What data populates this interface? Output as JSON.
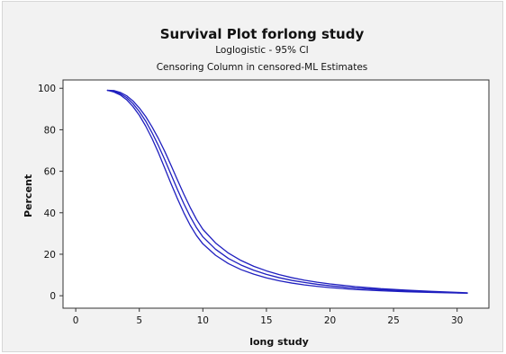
{
  "chart_data": {
    "type": "line",
    "title": "Survival Plot forlong study",
    "subtitle_1": "Loglogistic - 95% CI",
    "subtitle_2": "Censoring Column in censored-ML Estimates",
    "xlabel": "long study",
    "ylabel": "Percent",
    "xlim": [
      -1,
      32.5
    ],
    "ylim": [
      -6,
      104
    ],
    "xticks": [
      0,
      5,
      10,
      15,
      20,
      25,
      30
    ],
    "yticks": [
      0,
      20,
      40,
      60,
      80,
      100
    ],
    "grid": false,
    "legend": "none",
    "line_color": "#1f1fbf",
    "series": [
      {
        "x": [
          2.5,
          3.0,
          3.5,
          4.0,
          4.5,
          5.0,
          5.5,
          6.0,
          6.5,
          7.0,
          7.5,
          8.0,
          8.5,
          9.0,
          9.5,
          10.0,
          11.0,
          12.0,
          13.0,
          14.0,
          15.0,
          16.0,
          17.0,
          18.0,
          19.0,
          20.0,
          22.0,
          24.0,
          26.0,
          28.0,
          30.0,
          30.8
        ],
        "y": [
          99.0,
          98.2,
          96.8,
          94.5,
          91.2,
          87.0,
          81.8,
          75.8,
          69.0,
          61.5,
          54.0,
          46.8,
          40.0,
          34.0,
          29.0,
          25.0,
          19.5,
          15.5,
          12.6,
          10.4,
          8.6,
          7.2,
          6.1,
          5.2,
          4.5,
          3.9,
          3.0,
          2.4,
          1.9,
          1.6,
          1.3,
          1.2
        ]
      },
      {
        "x": [
          2.5,
          3.0,
          3.5,
          4.0,
          4.5,
          5.0,
          5.5,
          6.0,
          6.5,
          7.0,
          7.5,
          8.0,
          8.5,
          9.0,
          9.5,
          10.0,
          11.0,
          12.0,
          13.0,
          14.0,
          15.0,
          16.0,
          17.0,
          18.0,
          19.0,
          20.0,
          22.0,
          24.0,
          26.0,
          28.0,
          30.0,
          30.8
        ],
        "y": [
          99.0,
          98.6,
          97.4,
          95.5,
          92.6,
          88.8,
          84.2,
          78.6,
          72.4,
          65.6,
          58.4,
          51.2,
          44.4,
          38.2,
          32.8,
          28.4,
          22.4,
          18.0,
          14.8,
          12.3,
          10.3,
          8.7,
          7.4,
          6.4,
          5.5,
          4.8,
          3.7,
          2.9,
          2.3,
          1.8,
          1.4,
          1.3
        ]
      },
      {
        "x": [
          2.5,
          3.0,
          3.5,
          4.0,
          4.5,
          5.0,
          5.5,
          6.0,
          6.5,
          7.0,
          7.5,
          8.0,
          8.5,
          9.0,
          9.5,
          10.0,
          11.0,
          12.0,
          13.0,
          14.0,
          15.0,
          16.0,
          17.0,
          18.0,
          19.0,
          20.0,
          22.0,
          24.0,
          26.0,
          28.0,
          30.0,
          30.8
        ],
        "y": [
          99.0,
          98.9,
          98.0,
          96.4,
          93.9,
          90.5,
          86.4,
          81.4,
          75.8,
          69.6,
          62.8,
          55.8,
          49.0,
          42.6,
          36.8,
          32.0,
          25.4,
          20.6,
          17.0,
          14.2,
          12.0,
          10.2,
          8.7,
          7.5,
          6.5,
          5.7,
          4.4,
          3.4,
          2.7,
          2.1,
          1.6,
          1.4
        ]
      }
    ]
  }
}
